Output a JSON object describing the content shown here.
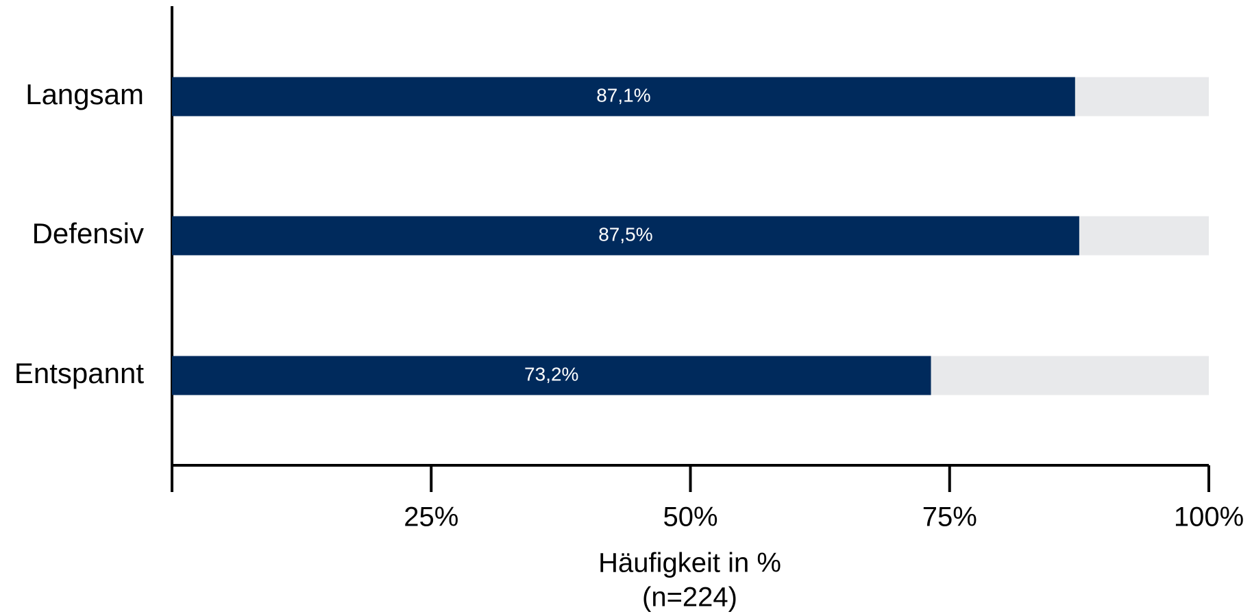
{
  "chart_data": {
    "type": "bar",
    "orientation": "horizontal",
    "categories": [
      "Langsam",
      "Defensiv",
      "Entspannt"
    ],
    "values": [
      87.1,
      87.5,
      73.2
    ],
    "value_labels": [
      "87,1%",
      "87,5%",
      "73,2%"
    ],
    "color": "#002a5c",
    "track_color": "#e8e9eb",
    "xlim": [
      0,
      100
    ],
    "xticks": [
      {
        "value": 25,
        "label": "25%"
      },
      {
        "value": 50,
        "label": "50%"
      },
      {
        "value": 75,
        "label": "75%"
      },
      {
        "value": 100,
        "label": "100%"
      }
    ],
    "xlabel": [
      "Häufigkeit in %",
      "(n=224)"
    ],
    "grid": false
  }
}
